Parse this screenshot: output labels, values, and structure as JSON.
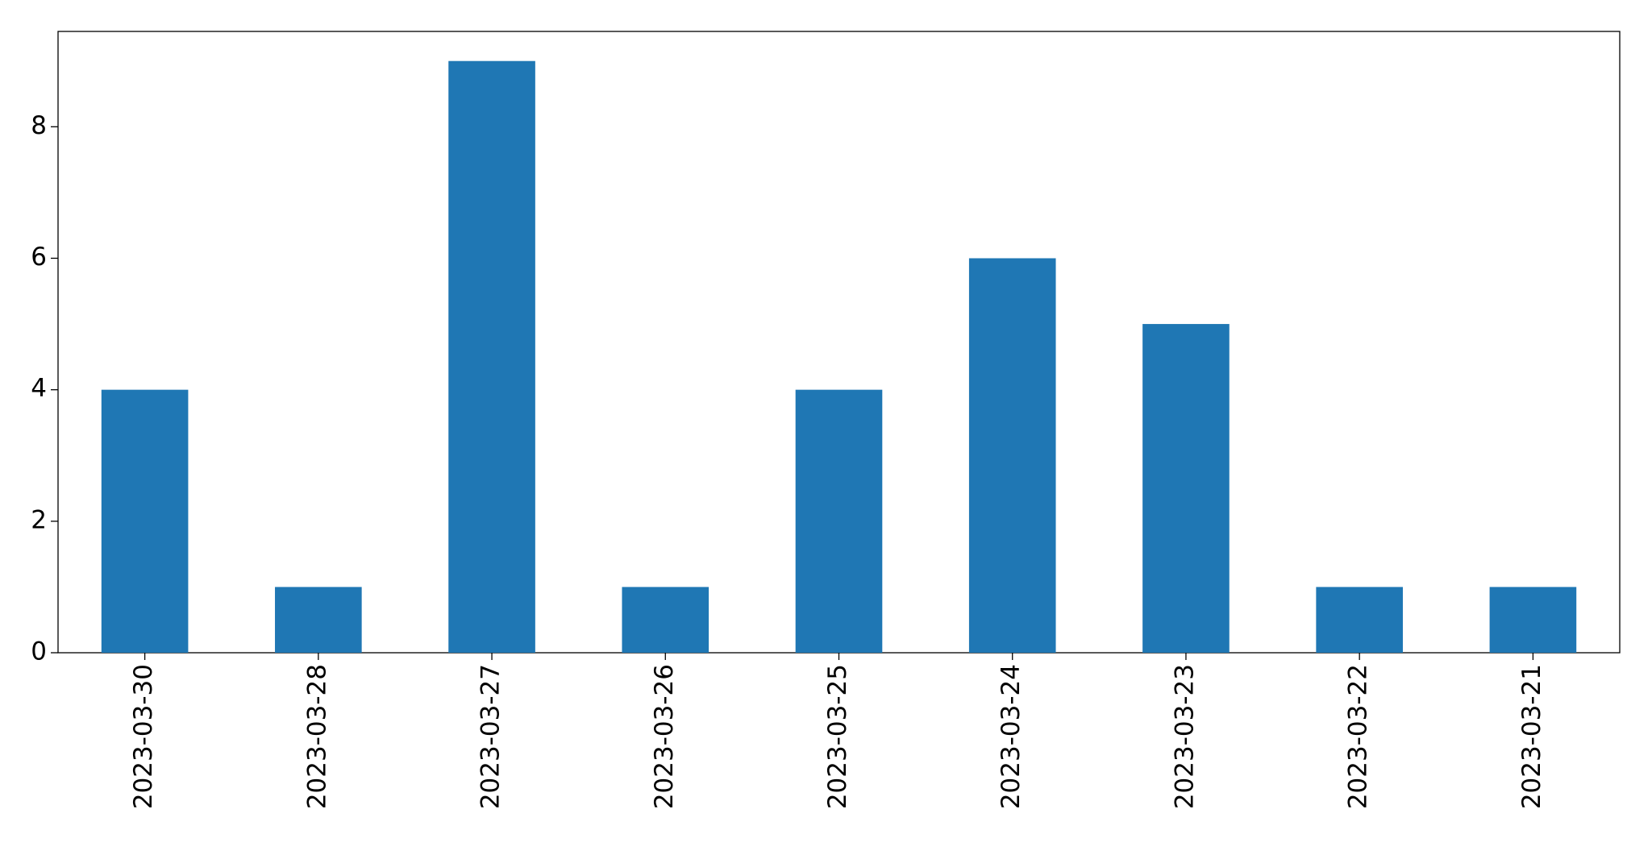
{
  "chart_data": {
    "type": "bar",
    "categories": [
      "2023-03-30",
      "2023-03-28",
      "2023-03-27",
      "2023-03-26",
      "2023-03-25",
      "2023-03-24",
      "2023-03-23",
      "2023-03-22",
      "2023-03-21"
    ],
    "values": [
      4,
      1,
      9,
      1,
      4,
      6,
      5,
      1,
      1
    ],
    "color": "#1f77b4",
    "ylim": [
      0,
      9.45
    ],
    "yticks": [
      0,
      2,
      4,
      6,
      8
    ],
    "grid": false
  }
}
